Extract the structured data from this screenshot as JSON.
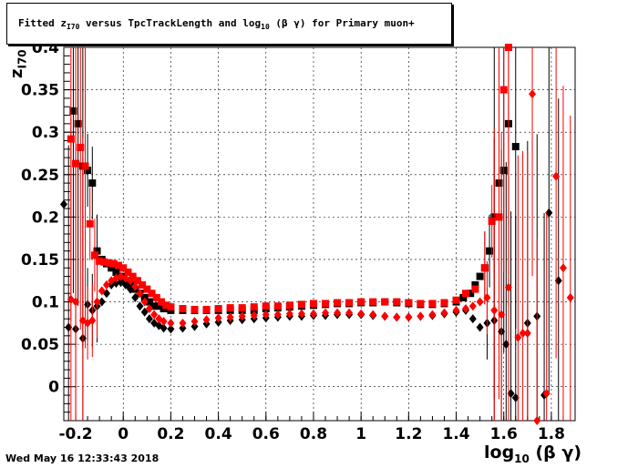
{
  "title": {
    "prefix": "Fitted  z",
    "sub1": "I70",
    "middle": "  versus TpcTrackLength and log",
    "sub2": "10",
    "suffix": " (β γ) for Primary muon+"
  },
  "timestamp": "Wed May 16 12:33:43 2018",
  "axes": {
    "xlabel_main": "log",
    "xlabel_sub": "10",
    "xlabel_tail": "(β γ)",
    "ylabel_main": "z",
    "ylabel_sub": "I70"
  },
  "colors": {
    "series_black": "#000000",
    "series_red": "#ff0000",
    "grid": "#000000"
  },
  "chart_data": {
    "type": "scatter",
    "xlim": [
      -0.25,
      1.9
    ],
    "ylim": [
      -0.04,
      0.4
    ],
    "grid": true,
    "x_ticks": [
      "-0.2",
      "0",
      "0.2",
      "0.4",
      "0.6",
      "0.8",
      "1",
      "1.2",
      "1.4",
      "1.6",
      "1.8"
    ],
    "x_tick_values": [
      -0.2,
      0,
      0.2,
      0.4,
      0.6,
      0.8,
      1,
      1.2,
      1.4,
      1.6,
      1.8
    ],
    "y_ticks": [
      "0",
      "0.05",
      "0.1",
      "0.15",
      "0.2",
      "0.25",
      "0.3",
      "0.35",
      "0.4"
    ],
    "y_tick_values": [
      0,
      0.05,
      0.1,
      0.15,
      0.2,
      0.25,
      0.3,
      0.35,
      0.4
    ],
    "series": [
      {
        "marker": "square",
        "color": "#000000",
        "points": [
          [
            -0.21,
            0.325
          ],
          [
            -0.19,
            0.31
          ],
          [
            -0.17,
            0.26
          ],
          [
            -0.15,
            0.255
          ],
          [
            -0.13,
            0.24
          ],
          [
            -0.11,
            0.16
          ],
          [
            -0.09,
            0.15
          ],
          [
            -0.07,
            0.145
          ],
          [
            -0.05,
            0.14
          ],
          [
            -0.03,
            0.135
          ],
          [
            -0.01,
            0.13
          ],
          [
            0.01,
            0.125
          ],
          [
            0.03,
            0.12
          ],
          [
            0.05,
            0.115
          ],
          [
            0.07,
            0.11
          ],
          [
            0.09,
            0.105
          ],
          [
            0.11,
            0.1
          ],
          [
            0.13,
            0.095
          ],
          [
            0.15,
            0.095
          ],
          [
            0.17,
            0.092
          ],
          [
            0.2,
            0.09
          ],
          [
            0.25,
            0.09
          ],
          [
            0.3,
            0.09
          ],
          [
            0.35,
            0.09
          ],
          [
            0.4,
            0.09
          ],
          [
            0.45,
            0.09
          ],
          [
            0.5,
            0.09
          ],
          [
            0.55,
            0.09
          ],
          [
            0.6,
            0.092
          ],
          [
            0.65,
            0.093
          ],
          [
            0.7,
            0.094
          ],
          [
            0.75,
            0.095
          ],
          [
            0.8,
            0.096
          ],
          [
            0.85,
            0.097
          ],
          [
            0.9,
            0.098
          ],
          [
            0.95,
            0.098
          ],
          [
            1.0,
            0.099
          ],
          [
            1.05,
            0.099
          ],
          [
            1.1,
            0.1
          ],
          [
            1.15,
            0.099
          ],
          [
            1.2,
            0.098
          ],
          [
            1.25,
            0.097
          ],
          [
            1.3,
            0.097
          ],
          [
            1.35,
            0.098
          ],
          [
            1.4,
            0.1
          ],
          [
            1.43,
            0.105
          ],
          [
            1.46,
            0.11
          ],
          [
            1.48,
            0.12
          ],
          [
            1.5,
            0.13
          ],
          [
            1.52,
            0.14
          ],
          [
            1.54,
            0.16
          ],
          [
            1.56,
            0.2
          ],
          [
            1.58,
            0.24
          ],
          [
            1.6,
            0.255
          ],
          [
            1.62,
            0.31
          ],
          [
            1.65,
            0.283
          ]
        ]
      },
      {
        "marker": "square",
        "color": "#ff0000",
        "points": [
          [
            -0.22,
            0.292
          ],
          [
            -0.2,
            0.263
          ],
          [
            -0.18,
            0.282
          ],
          [
            -0.16,
            0.26
          ],
          [
            -0.14,
            0.192
          ],
          [
            -0.12,
            0.155
          ],
          [
            -0.1,
            0.148
          ],
          [
            -0.08,
            0.147
          ],
          [
            -0.06,
            0.146
          ],
          [
            -0.04,
            0.145
          ],
          [
            -0.02,
            0.143
          ],
          [
            0.0,
            0.14
          ],
          [
            0.02,
            0.135
          ],
          [
            0.04,
            0.13
          ],
          [
            0.06,
            0.125
          ],
          [
            0.08,
            0.12
          ],
          [
            0.1,
            0.115
          ],
          [
            0.12,
            0.11
          ],
          [
            0.14,
            0.105
          ],
          [
            0.16,
            0.1
          ],
          [
            0.18,
            0.096
          ],
          [
            0.2,
            0.094
          ],
          [
            0.25,
            0.092
          ],
          [
            0.3,
            0.091
          ],
          [
            0.35,
            0.091
          ],
          [
            0.4,
            0.092
          ],
          [
            0.45,
            0.093
          ],
          [
            0.5,
            0.093
          ],
          [
            0.55,
            0.094
          ],
          [
            0.6,
            0.095
          ],
          [
            0.65,
            0.095
          ],
          [
            0.7,
            0.096
          ],
          [
            0.75,
            0.097
          ],
          [
            0.8,
            0.098
          ],
          [
            0.85,
            0.098
          ],
          [
            0.9,
            0.099
          ],
          [
            0.95,
            0.099
          ],
          [
            1.0,
            0.1
          ],
          [
            1.05,
            0.1
          ],
          [
            1.1,
            0.1
          ],
          [
            1.15,
            0.1
          ],
          [
            1.2,
            0.099
          ],
          [
            1.25,
            0.098
          ],
          [
            1.3,
            0.098
          ],
          [
            1.35,
            0.099
          ],
          [
            1.4,
            0.102
          ],
          [
            1.44,
            0.11
          ],
          [
            1.48,
            0.115
          ],
          [
            1.52,
            0.14
          ],
          [
            1.55,
            0.195
          ],
          [
            1.58,
            0.2
          ],
          [
            1.6,
            0.35
          ],
          [
            1.62,
            0.4
          ]
        ]
      },
      {
        "marker": "diamond",
        "color": "#000000",
        "points": [
          [
            -0.25,
            0.215
          ],
          [
            -0.23,
            0.07
          ],
          [
            -0.2,
            0.068
          ],
          [
            -0.17,
            0.057
          ],
          [
            -0.15,
            0.097
          ],
          [
            -0.13,
            0.09
          ],
          [
            -0.11,
            0.095
          ],
          [
            -0.09,
            0.1
          ],
          [
            -0.07,
            0.11
          ],
          [
            -0.05,
            0.12
          ],
          [
            -0.03,
            0.122
          ],
          [
            -0.01,
            0.123
          ],
          [
            0.01,
            0.12
          ],
          [
            0.03,
            0.115
          ],
          [
            0.05,
            0.105
          ],
          [
            0.07,
            0.095
          ],
          [
            0.09,
            0.088
          ],
          [
            0.11,
            0.08
          ],
          [
            0.13,
            0.075
          ],
          [
            0.15,
            0.072
          ],
          [
            0.17,
            0.069
          ],
          [
            0.2,
            0.068
          ],
          [
            0.25,
            0.069
          ],
          [
            0.3,
            0.071
          ],
          [
            0.35,
            0.074
          ],
          [
            0.4,
            0.076
          ],
          [
            0.45,
            0.078
          ],
          [
            0.5,
            0.079
          ],
          [
            0.55,
            0.08
          ],
          [
            0.6,
            0.081
          ],
          [
            0.65,
            0.082
          ],
          [
            0.7,
            0.083
          ],
          [
            0.75,
            0.083
          ],
          [
            0.8,
            0.084
          ],
          [
            0.85,
            0.084
          ],
          [
            0.9,
            0.085
          ],
          [
            0.95,
            0.085
          ],
          [
            1.0,
            0.085
          ],
          [
            1.05,
            0.084
          ],
          [
            1.1,
            0.083
          ],
          [
            1.15,
            0.082
          ],
          [
            1.2,
            0.082
          ],
          [
            1.25,
            0.083
          ],
          [
            1.3,
            0.084
          ],
          [
            1.35,
            0.086
          ],
          [
            1.4,
            0.088
          ],
          [
            1.44,
            0.09
          ],
          [
            1.47,
            0.08
          ],
          [
            1.5,
            0.07
          ],
          [
            1.53,
            0.075
          ],
          [
            1.56,
            0.078
          ],
          [
            1.59,
            0.065
          ],
          [
            1.61,
            0.05
          ],
          [
            1.63,
            -0.008
          ],
          [
            1.65,
            -0.013
          ],
          [
            1.7,
            0.075
          ],
          [
            1.74,
            0.083
          ],
          [
            1.77,
            -0.01
          ],
          [
            1.79,
            0.205
          ],
          [
            1.83,
            0.125
          ]
        ]
      },
      {
        "marker": "diamond",
        "color": "#ff0000",
        "points": [
          [
            -0.22,
            0.103
          ],
          [
            -0.2,
            0.1
          ],
          [
            -0.17,
            0.078
          ],
          [
            -0.15,
            0.075
          ],
          [
            -0.13,
            0.078
          ],
          [
            -0.11,
            0.1
          ],
          [
            -0.09,
            0.113
          ],
          [
            -0.07,
            0.12
          ],
          [
            -0.05,
            0.125
          ],
          [
            -0.03,
            0.128
          ],
          [
            -0.01,
            0.13
          ],
          [
            0.01,
            0.128
          ],
          [
            0.03,
            0.125
          ],
          [
            0.05,
            0.118
          ],
          [
            0.07,
            0.11
          ],
          [
            0.09,
            0.1
          ],
          [
            0.11,
            0.092
          ],
          [
            0.13,
            0.085
          ],
          [
            0.15,
            0.08
          ],
          [
            0.17,
            0.077
          ],
          [
            0.2,
            0.075
          ],
          [
            0.25,
            0.075
          ],
          [
            0.3,
            0.077
          ],
          [
            0.35,
            0.079
          ],
          [
            0.4,
            0.081
          ],
          [
            0.45,
            0.082
          ],
          [
            0.5,
            0.083
          ],
          [
            0.55,
            0.084
          ],
          [
            0.6,
            0.085
          ],
          [
            0.65,
            0.085
          ],
          [
            0.7,
            0.086
          ],
          [
            0.75,
            0.086
          ],
          [
            0.8,
            0.086
          ],
          [
            0.85,
            0.087
          ],
          [
            0.9,
            0.087
          ],
          [
            0.95,
            0.087
          ],
          [
            1.0,
            0.086
          ],
          [
            1.05,
            0.085
          ],
          [
            1.1,
            0.083
          ],
          [
            1.15,
            0.082
          ],
          [
            1.2,
            0.082
          ],
          [
            1.25,
            0.083
          ],
          [
            1.3,
            0.085
          ],
          [
            1.35,
            0.087
          ],
          [
            1.4,
            0.09
          ],
          [
            1.44,
            0.092
          ],
          [
            1.47,
            0.095
          ],
          [
            1.5,
            0.1
          ],
          [
            1.53,
            0.105
          ],
          [
            1.56,
            0.09
          ],
          [
            1.59,
            0.085
          ],
          [
            1.62,
            0.117
          ],
          [
            1.66,
            0.058
          ],
          [
            1.68,
            0.063
          ],
          [
            1.7,
            0.063
          ],
          [
            1.72,
            0.345
          ],
          [
            1.74,
            -0.04
          ],
          [
            1.78,
            -0.008
          ],
          [
            1.82,
            0.248
          ],
          [
            1.85,
            0.14
          ],
          [
            1.88,
            0.105
          ]
        ]
      }
    ]
  }
}
